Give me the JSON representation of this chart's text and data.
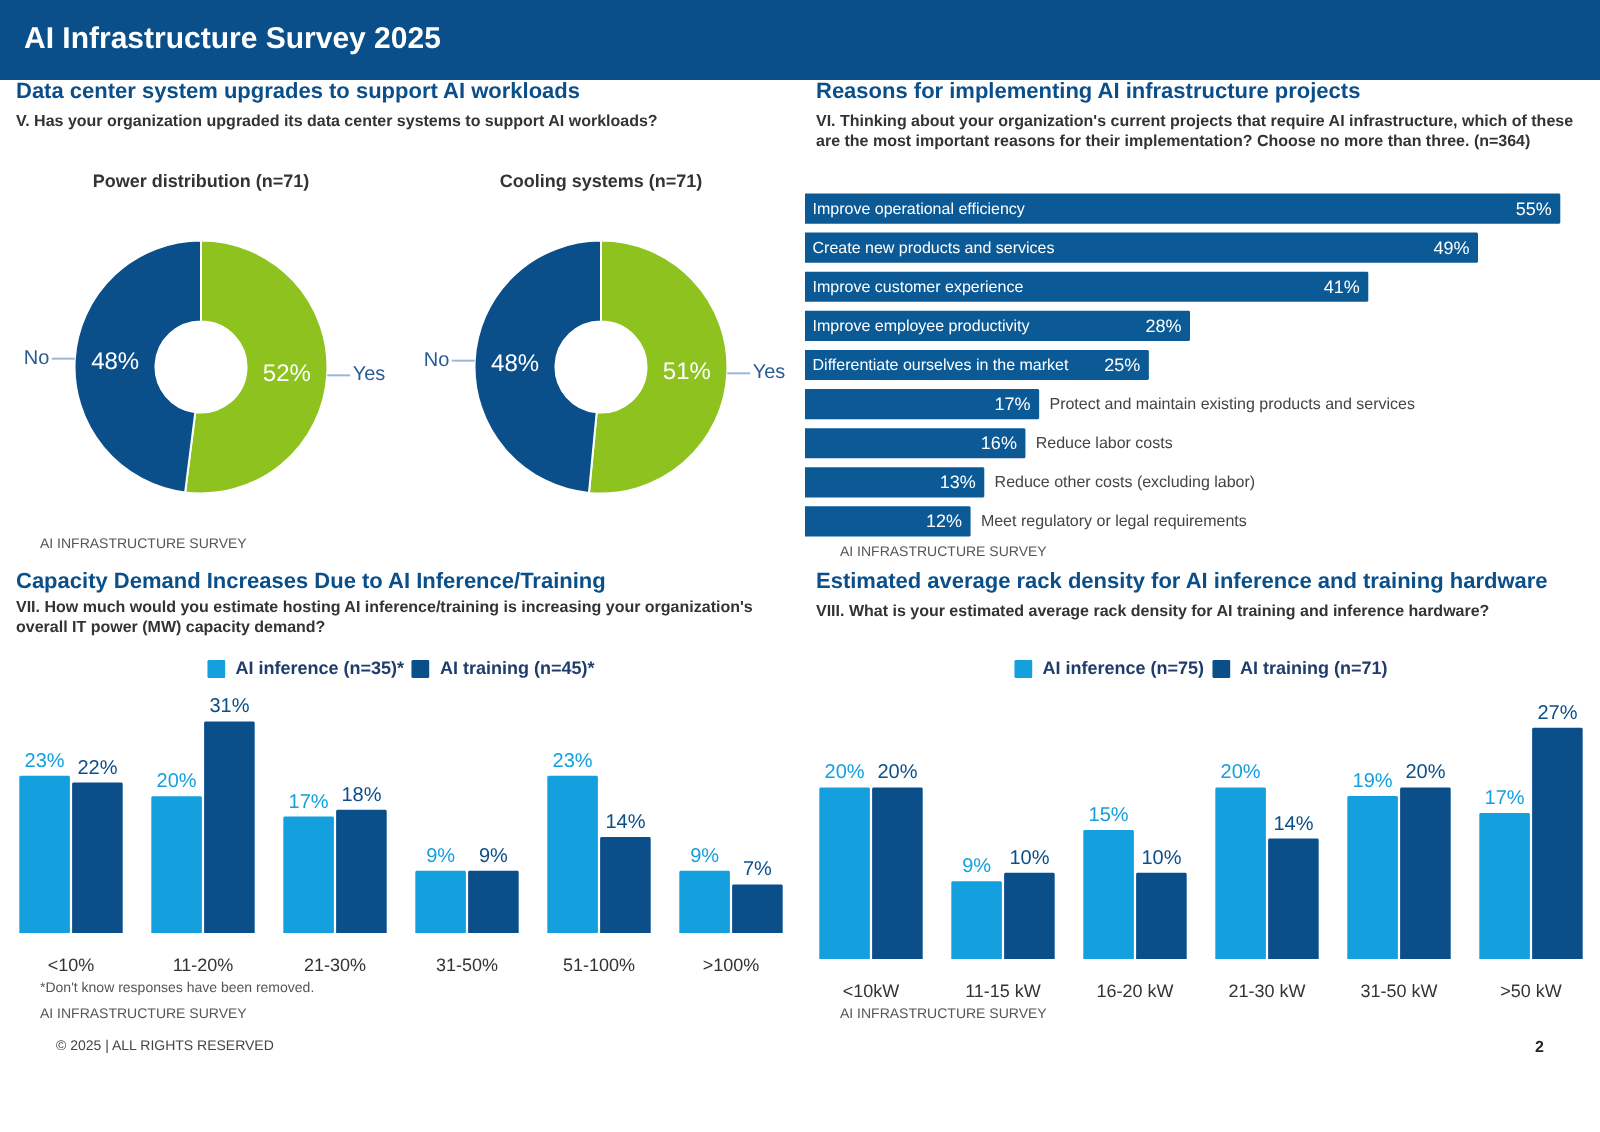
{
  "chart_data": [
    {
      "type": "other",
      "title": "AI Infrastructure Survey 2025"
    },
    {
      "type": "other",
      "title": "Data center system upgrades to support AI workloads",
      "subtitle": "V. Has your organization upgraded its data center systems to support AI workloads?"
    },
    {
      "type": "donut",
      "title": "Power distribution (n=71)",
      "categories": [
        "Yes",
        "No"
      ],
      "values": [
        52,
        48
      ],
      "value_labels": [
        "52%",
        "48%"
      ],
      "colors": [
        "#8dc21f",
        "#0b4f8a"
      ]
    },
    {
      "type": "donut",
      "title": "Cooling systems (n=71)",
      "categories": [
        "Yes",
        "No"
      ],
      "values": [
        51,
        48
      ],
      "value_labels": [
        "51%",
        "48%"
      ],
      "colors": [
        "#8dc21f",
        "#0b4f8a"
      ],
      "annotations": [
        "AI INFRASTRUCTURE SURVEY"
      ]
    },
    {
      "type": "bar",
      "orientation": "horizontal",
      "title": "Reasons for implementing AI infrastructure projects",
      "subtitle": "VI. Thinking about your organization's current projects that require AI infrastructure, which of these are the most important reasons for their implementation? Choose no more than three. (n=364)",
      "categories": [
        "Improve operational efficiency",
        "Create new products and services",
        "Improve customer experience",
        "Improve employee productivity",
        "Differentiate ourselves in the market",
        "Protect and maintain existing products and services",
        "Reduce labor costs",
        "Reduce other costs (excluding labor)",
        "Meet regulatory or legal requirements"
      ],
      "values": [
        55,
        49,
        41,
        28,
        25,
        17,
        16,
        13,
        12
      ],
      "value_labels": [
        "55%",
        "49%",
        "41%",
        "28%",
        "25%",
        "17%",
        "16%",
        "13%",
        "12%"
      ],
      "color": "#0b5a96",
      "annotations": [
        "AI INFRASTRUCTURE SURVEY"
      ]
    },
    {
      "type": "bar",
      "title": "Capacity Demand Increases Due to AI Inference/Training",
      "subtitle": "VII. How much would you estimate hosting AI inference/training is increasing your organization's overall IT power (MW) capacity demand?",
      "categories": [
        "<10%",
        "11-20%",
        "21-30%",
        "31-50%",
        "51-100%",
        ">100%"
      ],
      "legend": "top",
      "series": [
        {
          "name": "AI inference (n=35)*",
          "color": "#14a0de",
          "values": [
            23,
            20,
            17,
            9,
            23,
            9
          ],
          "value_labels": [
            "23%",
            "20%",
            "17%",
            "9%",
            "23%",
            "9%"
          ]
        },
        {
          "name": "AI training (n=45)*",
          "color": "#0b4f8a",
          "values": [
            22,
            31,
            18,
            9,
            14,
            7
          ],
          "value_labels": [
            "22%",
            "31%",
            "18%",
            "9%",
            "14%",
            "7%"
          ]
        }
      ],
      "annotations": [
        "*Don't know responses have been removed.",
        "AI INFRASTRUCTURE SURVEY"
      ]
    },
    {
      "type": "bar",
      "title": "Estimated average rack density for AI inference and training hardware",
      "subtitle": "VIII. What is your estimated average rack density for AI training and inference hardware?",
      "categories": [
        "<10kW",
        "11-15 kW",
        "16-20 kW",
        "21-30 kW",
        "31-50 kW",
        ">50 kW"
      ],
      "legend": "top",
      "series": [
        {
          "name": "AI inference (n=75)",
          "color": "#14a0de",
          "values": [
            20,
            9,
            15,
            20,
            19,
            17
          ],
          "value_labels": [
            "20%",
            "9%",
            "15%",
            "20%",
            "19%",
            "17%"
          ]
        },
        {
          "name": "AI training (n=71)",
          "color": "#0b4f8a",
          "values": [
            20,
            10,
            10,
            14,
            20,
            27
          ],
          "value_labels": [
            "20%",
            "10%",
            "10%",
            "14%",
            "20%",
            "27%"
          ]
        }
      ],
      "annotations": [
        "AI INFRASTRUCTURE SURVEY"
      ]
    },
    {
      "type": "other",
      "annotations": [
        "© 2025 | ALL RIGHTS RESERVED",
        "2"
      ]
    }
  ]
}
